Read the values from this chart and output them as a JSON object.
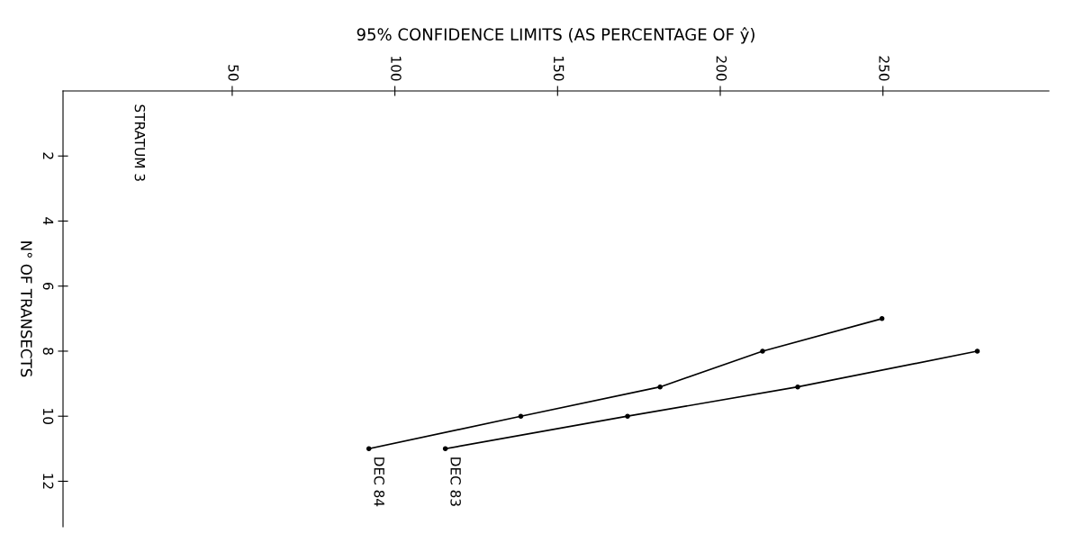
{
  "chart_data": {
    "type": "line",
    "xlabel": "95% CONFIDENCE LIMITS (AS PERCENTAGE OF ŷ)",
    "ylabel": "N° OF TRANSECTS",
    "annotations": [
      "STRATUM 3"
    ],
    "xlim": [
      -2,
      301
    ],
    "xticks": [
      50,
      100,
      150,
      200,
      250
    ],
    "ylim": [
      13.4,
      0
    ],
    "yticks": [
      2,
      4,
      6,
      8,
      10,
      12
    ],
    "grid": false,
    "legend": false,
    "marker": "circle",
    "line_style": "solid",
    "series": [
      {
        "name": "DEC 84",
        "color": "#000000",
        "x": [
          92,
          138.7,
          181.5,
          213,
          249.7
        ],
        "values": [
          11,
          10,
          9.1,
          8,
          7
        ]
      },
      {
        "name": "DEC 83",
        "color": "#000000",
        "x": [
          115.5,
          171.5,
          223.8,
          279
        ],
        "values": [
          11,
          10,
          9.1,
          8
        ]
      }
    ]
  }
}
